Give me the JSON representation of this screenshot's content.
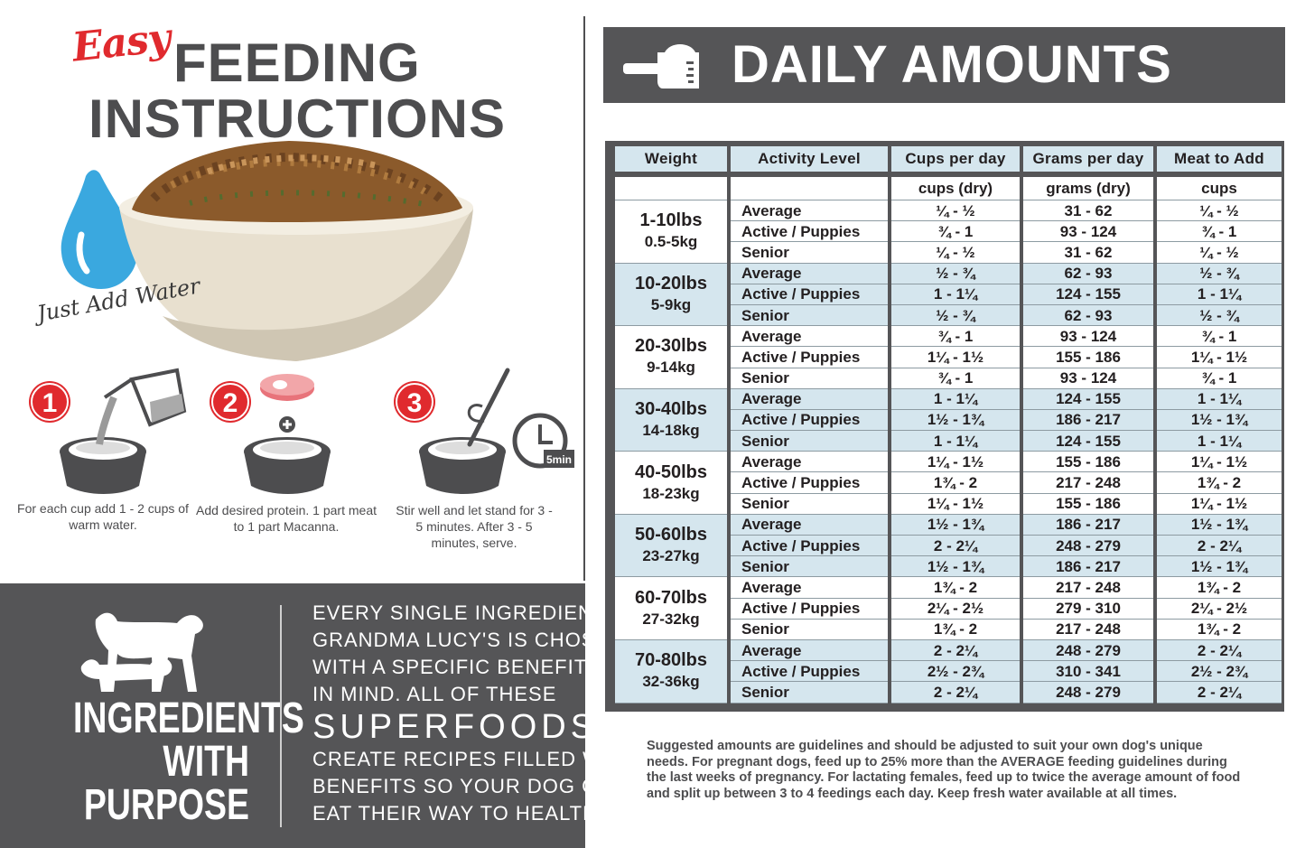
{
  "header": {
    "easy": "Easy",
    "title_line1": "FEEDING",
    "title_line2": "INSTRUCTIONS",
    "just_add_water": "Just Add Water"
  },
  "steps": [
    {
      "number": "1",
      "text": "For each cup add 1 - 2 cups of warm water."
    },
    {
      "number": "2",
      "text": "Add desired protein. 1 part meat to 1 part Macanna."
    },
    {
      "number": "3",
      "text": "Stir well and let stand for 3 - 5 minutes. After 3 - 5 minutes, serve.",
      "timer_label": "5min"
    }
  ],
  "ingredients": {
    "title_lines": [
      "INGREDIENTS",
      "WITH",
      "PURPOSE"
    ],
    "para_lines": [
      "EVERY SINGLE INGREDIENT IN",
      "GRANDMA LUCY'S IS CHOSEN",
      "WITH A SPECIFIC BENEFIT",
      "IN MIND. ALL OF THESE",
      "SUPERFOODS",
      "CREATE RECIPES FILLED WITH",
      "BENEFITS SO YOUR DOG CAN",
      "EAT THEIR WAY TO HEALTH."
    ]
  },
  "daily": {
    "title": "DAILY AMOUNTS",
    "columns": [
      "Weight",
      "Activity Level",
      "Cups per day",
      "Grams per day",
      "Meat to Add"
    ],
    "units": [
      "",
      "",
      "cups (dry)",
      "grams (dry)",
      "cups"
    ],
    "groups": [
      {
        "lbs": "1-10lbs",
        "kg": "0.5-5kg",
        "rows": [
          [
            "Average",
            "¼ - ½",
            "31 - 62",
            "¼ - ½"
          ],
          [
            "Active / Puppies",
            "¾ - 1",
            "93 - 124",
            "¾ - 1"
          ],
          [
            "Senior",
            "¼ - ½",
            "31 - 62",
            "¼ - ½"
          ]
        ]
      },
      {
        "lbs": "10-20lbs",
        "kg": "5-9kg",
        "rows": [
          [
            "Average",
            "½ - ¾",
            "62 - 93",
            "½ - ¾"
          ],
          [
            "Active / Puppies",
            "1 - 1¼",
            "124 - 155",
            "1 - 1¼"
          ],
          [
            "Senior",
            "½ - ¾",
            "62 - 93",
            "½ - ¾"
          ]
        ]
      },
      {
        "lbs": "20-30lbs",
        "kg": "9-14kg",
        "rows": [
          [
            "Average",
            "¾ - 1",
            "93 - 124",
            "¾ - 1"
          ],
          [
            "Active / Puppies",
            "1¼ - 1½",
            "155 - 186",
            "1¼ - 1½"
          ],
          [
            "Senior",
            "¾ - 1",
            "93 - 124",
            "¾ - 1"
          ]
        ]
      },
      {
        "lbs": "30-40lbs",
        "kg": "14-18kg",
        "rows": [
          [
            "Average",
            "1 - 1¼",
            "124 - 155",
            "1 - 1¼"
          ],
          [
            "Active / Puppies",
            "1½ - 1¾",
            "186 - 217",
            "1½ - 1¾"
          ],
          [
            "Senior",
            "1 - 1¼",
            "124 - 155",
            "1 - 1¼"
          ]
        ]
      },
      {
        "lbs": "40-50lbs",
        "kg": "18-23kg",
        "rows": [
          [
            "Average",
            "1¼ - 1½",
            "155 - 186",
            "1¼ - 1½"
          ],
          [
            "Active / Puppies",
            "1¾ - 2",
            "217 - 248",
            "1¾ - 2"
          ],
          [
            "Senior",
            "1¼ - 1½",
            "155 - 186",
            "1¼ - 1½"
          ]
        ]
      },
      {
        "lbs": "50-60lbs",
        "kg": "23-27kg",
        "rows": [
          [
            "Average",
            "1½ - 1¾",
            "186 - 217",
            "1½ - 1¾"
          ],
          [
            "Active / Puppies",
            "2 - 2¼",
            "248 - 279",
            "2 - 2¼"
          ],
          [
            "Senior",
            "1½ - 1¾",
            "186 - 217",
            "1½ - 1¾"
          ]
        ]
      },
      {
        "lbs": "60-70lbs",
        "kg": "27-32kg",
        "rows": [
          [
            "Average",
            "1¾ - 2",
            "217 - 248",
            "1¾ - 2"
          ],
          [
            "Active / Puppies",
            "2¼ - 2½",
            "279 - 310",
            "2¼ - 2½"
          ],
          [
            "Senior",
            "1¾ - 2",
            "217 - 248",
            "1¾ - 2"
          ]
        ]
      },
      {
        "lbs": "70-80lbs",
        "kg": "32-36kg",
        "rows": [
          [
            "Average",
            "2 - 2¼",
            "248 - 279",
            "2 - 2¼"
          ],
          [
            "Active / Puppies",
            "2½ - 2¾",
            "310 - 341",
            "2½ - 2¾"
          ],
          [
            "Senior",
            "2 - 2¼",
            "248 - 279",
            "2 - 2¼"
          ]
        ]
      }
    ],
    "footnote": "Suggested amounts are guidelines and should be adjusted to suit your own dog's unique needs. For pregnant dogs, feed up to 25% more than the AVERAGE feeding guidelines during the last weeks of pregnancy. For lactating females, feed up to twice the average amount of food and split up between 3 to 4 feedings each day. Keep fresh water available at all times."
  },
  "colors": {
    "accent_red": "#e02a2e",
    "panel_gray": "#555557",
    "row_blue": "#d5e6ee",
    "water_blue": "#3aa8df"
  }
}
